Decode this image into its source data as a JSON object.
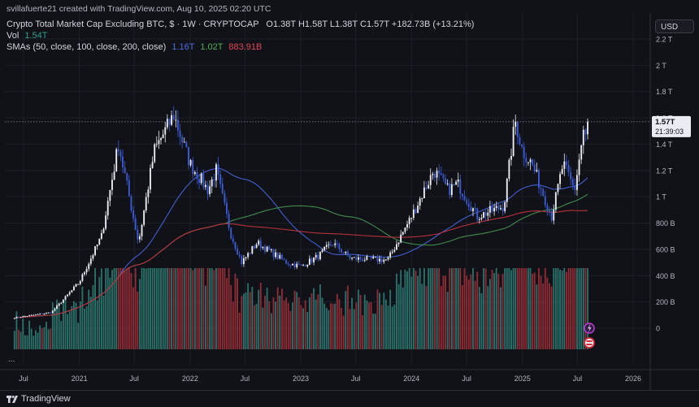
{
  "top_bar": {
    "text": "svillafuerte21 created with TradingView.com, Aug 10, 2025 02:20 UTC"
  },
  "header": {
    "title": "Crypto Total Market Cap Excluding BTC, $ · 1W · CRYPTOCAP",
    "ohlc": "O1.38T  H1.58T  L1.38T  C1.57T  +182.73B (+13.21%)",
    "vol_label": "Vol",
    "vol_value": "1.54T",
    "sma_label": "SMAs (50, close, 100, close, 200, close)",
    "sma50_value": "1.16T",
    "sma100_value": "1.02T",
    "sma200_value": "883.91B"
  },
  "currency_button": "USD",
  "price_label": {
    "value": "1.57T",
    "countdown": "21:39:03"
  },
  "footer": {
    "brand": "TradingView"
  },
  "more_dots": "...",
  "colors": {
    "background": "#111218",
    "up": "#e9ecf2",
    "down": "#3b5bd6",
    "sma50": "#3f5fd0",
    "sma100": "#3f8f4b",
    "sma200": "#b8313c",
    "vol_up": "#2b6f69",
    "vol_down": "#8e2b34"
  },
  "chart_data": {
    "type": "line",
    "title": "Crypto Total Market Cap Excluding BTC",
    "timeframe": "1W",
    "y_unit": "USD",
    "x_ticks": [
      "Jul",
      "2021",
      "Jul",
      "2022",
      "Jul",
      "2023",
      "Jul",
      "2024",
      "Jul",
      "2025",
      "Jul",
      "2026"
    ],
    "y_ticks": [
      "2.2 T",
      "2 T",
      "1.8 T",
      "1.6 T",
      "1.4 T",
      "1.2 T",
      "1 T",
      "800 B",
      "600 B",
      "400 B",
      "200 B",
      "0"
    ],
    "y_range": [
      0,
      2.3
    ],
    "grid": true,
    "price_anchors": [
      {
        "date": "2020-06-01",
        "close": 0.08
      },
      {
        "date": "2020-10-01",
        "close": 0.12
      },
      {
        "date": "2021-01-01",
        "close": 0.35
      },
      {
        "date": "2021-03-15",
        "close": 0.7
      },
      {
        "date": "2021-05-10",
        "close": 1.4
      },
      {
        "date": "2021-07-15",
        "close": 0.65
      },
      {
        "date": "2021-09-05",
        "close": 1.35
      },
      {
        "date": "2021-11-08",
        "close": 1.62
      },
      {
        "date": "2022-01-01",
        "close": 1.25
      },
      {
        "date": "2022-03-01",
        "close": 1.05
      },
      {
        "date": "2022-03-28",
        "close": 1.2
      },
      {
        "date": "2022-05-15",
        "close": 0.72
      },
      {
        "date": "2022-06-20",
        "close": 0.5
      },
      {
        "date": "2022-08-10",
        "close": 0.65
      },
      {
        "date": "2022-11-15",
        "close": 0.5
      },
      {
        "date": "2023-01-01",
        "close": 0.47
      },
      {
        "date": "2023-03-01",
        "close": 0.55
      },
      {
        "date": "2023-04-15",
        "close": 0.65
      },
      {
        "date": "2023-06-15",
        "close": 0.53
      },
      {
        "date": "2023-10-15",
        "close": 0.52
      },
      {
        "date": "2024-01-01",
        "close": 0.85
      },
      {
        "date": "2024-03-15",
        "close": 1.2
      },
      {
        "date": "2024-05-01",
        "close": 1.05
      },
      {
        "date": "2024-06-01",
        "close": 1.1
      },
      {
        "date": "2024-08-05",
        "close": 0.85
      },
      {
        "date": "2024-11-01",
        "close": 0.93
      },
      {
        "date": "2024-12-08",
        "close": 1.58
      },
      {
        "date": "2025-01-01",
        "close": 1.35
      },
      {
        "date": "2025-02-01",
        "close": 1.25
      },
      {
        "date": "2025-04-07",
        "close": 0.85
      },
      {
        "date": "2025-05-15",
        "close": 1.25
      },
      {
        "date": "2025-06-22",
        "close": 1.05
      },
      {
        "date": "2025-07-21",
        "close": 1.5
      },
      {
        "date": "2025-08-04",
        "close": 1.39
      },
      {
        "date": "2025-08-10",
        "close": 1.57
      }
    ],
    "series": [
      {
        "name": "SMA 50",
        "last": 1.16
      },
      {
        "name": "SMA 100",
        "last": 1.02
      },
      {
        "name": "SMA 200",
        "last": 0.88391
      }
    ],
    "last_close": 1.57
  }
}
